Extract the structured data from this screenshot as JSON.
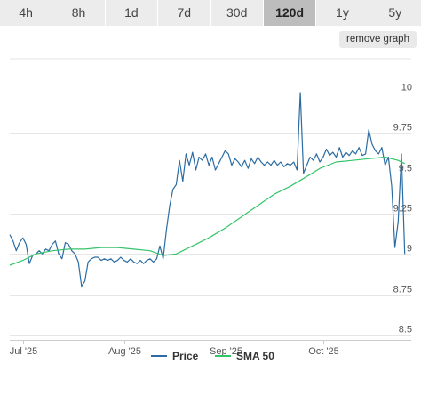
{
  "ranges": [
    "4h",
    "8h",
    "1d",
    "7d",
    "30d",
    "120d",
    "1y",
    "5y"
  ],
  "active_range": "120d",
  "remove_graph_label": "remove graph",
  "colors": {
    "price": "#2b6ca3",
    "sma": "#35c46a",
    "grid": "#e6e6e6",
    "axis_text": "#555555"
  },
  "chart_data": {
    "type": "line",
    "title": "",
    "xlabel": "",
    "ylabel": "",
    "ylim": [
      8.5,
      10
    ],
    "yticks": [
      8.5,
      8.75,
      9,
      9.25,
      9.5,
      9.75,
      10
    ],
    "x_range": [
      "2025-06-27",
      "2025-10-28"
    ],
    "xticks": [
      {
        "date": "2025-07-01",
        "label": "Jul '25"
      },
      {
        "date": "2025-08-01",
        "label": "Aug '25"
      },
      {
        "date": "2025-09-01",
        "label": "Sep '25"
      },
      {
        "date": "2025-10-01",
        "label": "Oct '25"
      }
    ],
    "legend": [
      "Price",
      "SMA 50"
    ],
    "legend_position": "bottom",
    "series": [
      {
        "name": "Price",
        "points": [
          [
            "2025-06-27",
            9.12
          ],
          [
            "2025-06-28",
            9.08
          ],
          [
            "2025-06-29",
            9.02
          ],
          [
            "2025-06-30",
            9.07
          ],
          [
            "2025-07-01",
            9.1
          ],
          [
            "2025-07-02",
            9.06
          ],
          [
            "2025-07-03",
            8.94
          ],
          [
            "2025-07-04",
            8.99
          ],
          [
            "2025-07-05",
            9.0
          ],
          [
            "2025-07-06",
            9.02
          ],
          [
            "2025-07-07",
            9.0
          ],
          [
            "2025-07-08",
            9.03
          ],
          [
            "2025-07-09",
            9.02
          ],
          [
            "2025-07-10",
            9.06
          ],
          [
            "2025-07-11",
            9.08
          ],
          [
            "2025-07-12",
            9.0
          ],
          [
            "2025-07-13",
            8.97
          ],
          [
            "2025-07-14",
            9.07
          ],
          [
            "2025-07-15",
            9.06
          ],
          [
            "2025-07-16",
            9.02
          ],
          [
            "2025-07-17",
            9.0
          ],
          [
            "2025-07-18",
            8.95
          ],
          [
            "2025-07-19",
            8.8
          ],
          [
            "2025-07-20",
            8.83
          ],
          [
            "2025-07-21",
            8.95
          ],
          [
            "2025-07-22",
            8.97
          ],
          [
            "2025-07-23",
            8.98
          ],
          [
            "2025-07-24",
            8.98
          ],
          [
            "2025-07-25",
            8.96
          ],
          [
            "2025-07-26",
            8.97
          ],
          [
            "2025-07-27",
            8.96
          ],
          [
            "2025-07-28",
            8.97
          ],
          [
            "2025-07-29",
            8.95
          ],
          [
            "2025-07-30",
            8.96
          ],
          [
            "2025-07-31",
            8.98
          ],
          [
            "2025-08-01",
            8.96
          ],
          [
            "2025-08-02",
            8.95
          ],
          [
            "2025-08-03",
            8.97
          ],
          [
            "2025-08-04",
            8.95
          ],
          [
            "2025-08-05",
            8.94
          ],
          [
            "2025-08-06",
            8.96
          ],
          [
            "2025-08-07",
            8.94
          ],
          [
            "2025-08-08",
            8.96
          ],
          [
            "2025-08-09",
            8.97
          ],
          [
            "2025-08-10",
            8.95
          ],
          [
            "2025-08-11",
            8.97
          ],
          [
            "2025-08-12",
            9.05
          ],
          [
            "2025-08-13",
            8.97
          ],
          [
            "2025-08-14",
            9.15
          ],
          [
            "2025-08-15",
            9.3
          ],
          [
            "2025-08-16",
            9.4
          ],
          [
            "2025-08-17",
            9.43
          ],
          [
            "2025-08-18",
            9.58
          ],
          [
            "2025-08-19",
            9.45
          ],
          [
            "2025-08-20",
            9.62
          ],
          [
            "2025-08-21",
            9.55
          ],
          [
            "2025-08-22",
            9.63
          ],
          [
            "2025-08-23",
            9.52
          ],
          [
            "2025-08-24",
            9.6
          ],
          [
            "2025-08-25",
            9.58
          ],
          [
            "2025-08-26",
            9.62
          ],
          [
            "2025-08-27",
            9.55
          ],
          [
            "2025-08-28",
            9.6
          ],
          [
            "2025-08-29",
            9.52
          ],
          [
            "2025-08-30",
            9.56
          ],
          [
            "2025-08-31",
            9.6
          ],
          [
            "2025-09-01",
            9.64
          ],
          [
            "2025-09-02",
            9.62
          ],
          [
            "2025-09-03",
            9.55
          ],
          [
            "2025-09-04",
            9.59
          ],
          [
            "2025-09-05",
            9.57
          ],
          [
            "2025-09-06",
            9.54
          ],
          [
            "2025-09-07",
            9.58
          ],
          [
            "2025-09-08",
            9.53
          ],
          [
            "2025-09-09",
            9.59
          ],
          [
            "2025-09-10",
            9.56
          ],
          [
            "2025-09-11",
            9.6
          ],
          [
            "2025-09-12",
            9.57
          ],
          [
            "2025-09-13",
            9.55
          ],
          [
            "2025-09-14",
            9.57
          ],
          [
            "2025-09-15",
            9.55
          ],
          [
            "2025-09-16",
            9.58
          ],
          [
            "2025-09-17",
            9.55
          ],
          [
            "2025-09-18",
            9.57
          ],
          [
            "2025-09-19",
            9.54
          ],
          [
            "2025-09-20",
            9.56
          ],
          [
            "2025-09-21",
            9.55
          ],
          [
            "2025-09-22",
            9.57
          ],
          [
            "2025-09-23",
            9.52
          ],
          [
            "2025-09-24",
            10.0
          ],
          [
            "2025-09-25",
            9.5
          ],
          [
            "2025-09-26",
            9.55
          ],
          [
            "2025-09-27",
            9.6
          ],
          [
            "2025-09-28",
            9.58
          ],
          [
            "2025-09-29",
            9.62
          ],
          [
            "2025-09-30",
            9.57
          ],
          [
            "2025-10-01",
            9.6
          ],
          [
            "2025-10-02",
            9.65
          ],
          [
            "2025-10-03",
            9.61
          ],
          [
            "2025-10-04",
            9.63
          ],
          [
            "2025-10-05",
            9.6
          ],
          [
            "2025-10-06",
            9.66
          ],
          [
            "2025-10-07",
            9.6
          ],
          [
            "2025-10-08",
            9.63
          ],
          [
            "2025-10-09",
            9.61
          ],
          [
            "2025-10-10",
            9.64
          ],
          [
            "2025-10-11",
            9.62
          ],
          [
            "2025-10-12",
            9.66
          ],
          [
            "2025-10-13",
            9.61
          ],
          [
            "2025-10-14",
            9.62
          ],
          [
            "2025-10-15",
            9.77
          ],
          [
            "2025-10-16",
            9.68
          ],
          [
            "2025-10-17",
            9.64
          ],
          [
            "2025-10-18",
            9.62
          ],
          [
            "2025-10-19",
            9.66
          ],
          [
            "2025-10-20",
            9.55
          ],
          [
            "2025-10-21",
            9.6
          ],
          [
            "2025-10-22",
            9.42
          ],
          [
            "2025-10-23",
            9.04
          ],
          [
            "2025-10-24",
            9.2
          ],
          [
            "2025-10-25",
            9.62
          ],
          [
            "2025-10-26",
            9.0
          ]
        ]
      },
      {
        "name": "SMA 50",
        "points": [
          [
            "2025-06-27",
            8.93
          ],
          [
            "2025-07-01",
            8.96
          ],
          [
            "2025-07-05",
            9.0
          ],
          [
            "2025-07-10",
            9.02
          ],
          [
            "2025-07-15",
            9.03
          ],
          [
            "2025-07-20",
            9.03
          ],
          [
            "2025-07-25",
            9.04
          ],
          [
            "2025-07-30",
            9.04
          ],
          [
            "2025-08-04",
            9.03
          ],
          [
            "2025-08-09",
            9.02
          ],
          [
            "2025-08-13",
            8.99
          ],
          [
            "2025-08-17",
            9.0
          ],
          [
            "2025-08-22",
            9.05
          ],
          [
            "2025-08-27",
            9.1
          ],
          [
            "2025-09-01",
            9.16
          ],
          [
            "2025-09-06",
            9.23
          ],
          [
            "2025-09-11",
            9.3
          ],
          [
            "2025-09-16",
            9.37
          ],
          [
            "2025-09-21",
            9.42
          ],
          [
            "2025-09-26",
            9.48
          ],
          [
            "2025-09-30",
            9.53
          ],
          [
            "2025-10-05",
            9.57
          ],
          [
            "2025-10-10",
            9.58
          ],
          [
            "2025-10-15",
            9.59
          ],
          [
            "2025-10-20",
            9.6
          ],
          [
            "2025-10-24",
            9.58
          ],
          [
            "2025-10-26",
            9.56
          ]
        ]
      }
    ]
  }
}
